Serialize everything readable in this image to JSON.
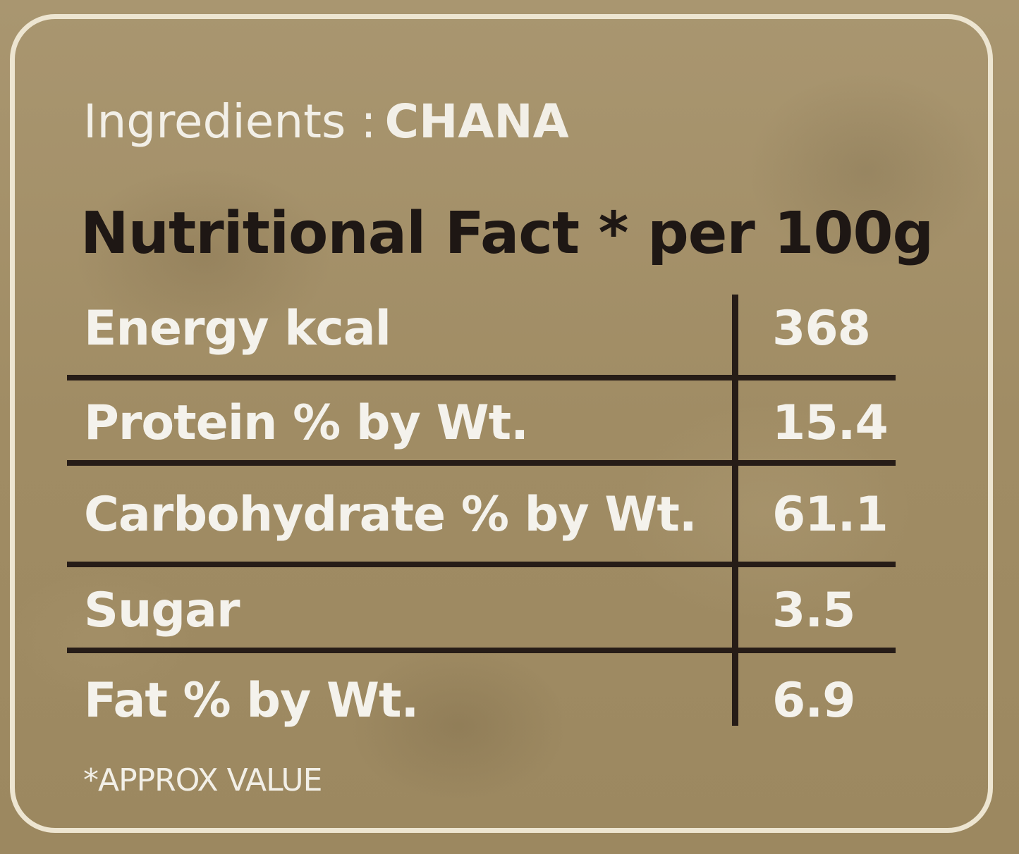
{
  "ingredients": {
    "label": "Ingredients :",
    "value": "CHANA"
  },
  "nutrition": {
    "title": "Nutritional Fact * per 100g",
    "rows": [
      {
        "label": "Energy kcal",
        "value": "368"
      },
      {
        "label": "Protein % by Wt.",
        "value": "15.4"
      },
      {
        "label": "Carbohydrate % by Wt.",
        "value": "61.1"
      },
      {
        "label": "Sugar",
        "value": "3.5"
      },
      {
        "label": "Fat % by Wt.",
        "value": "6.9"
      }
    ]
  },
  "footnote": "*APPROX VALUE",
  "colors": {
    "background": "#a4916a",
    "border": "#ede5d1",
    "text_light": "#f4f2ec",
    "text_dark": "#1e1714",
    "rule": "#261c17"
  }
}
